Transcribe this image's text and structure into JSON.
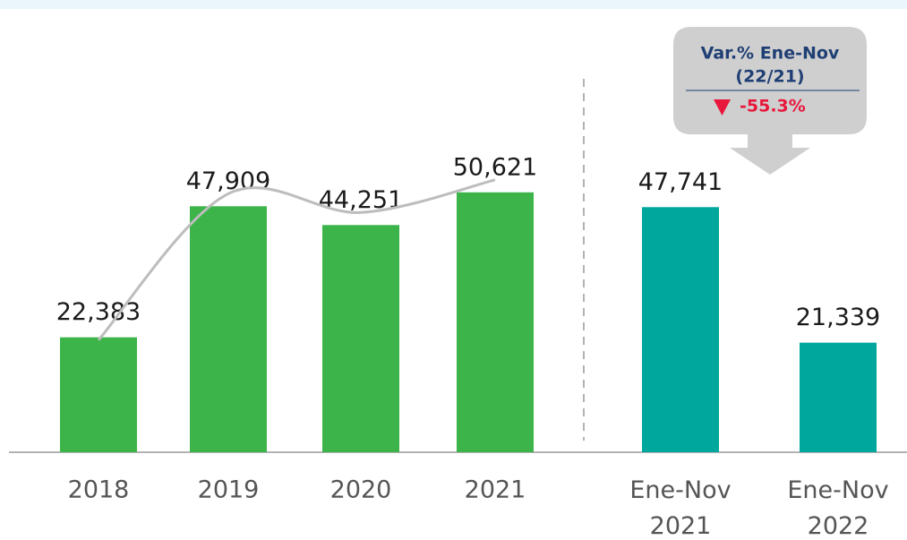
{
  "chart_data": {
    "type": "bar",
    "categories": [
      "2018",
      "2019",
      "2020",
      "2021",
      "Ene-Nov 2021",
      "Ene-Nov 2022"
    ],
    "values": [
      22383,
      47909,
      44251,
      50621,
      47741,
      21339
    ],
    "value_labels": [
      "22,383",
      "47,909",
      "44,251",
      "50,621",
      "47,741",
      "21,339"
    ],
    "colors": [
      "#3cb44a",
      "#3cb44a",
      "#3cb44a",
      "#3cb44a",
      "#00a79d",
      "#00a79d"
    ],
    "trend_color": "#bdbdbd",
    "ylim": [
      0,
      60000
    ],
    "annotation": {
      "title": "Var.% Ene-Nov",
      "subtitle": "(22/21)",
      "value": -55.3,
      "value_label": "-55.3%"
    }
  }
}
